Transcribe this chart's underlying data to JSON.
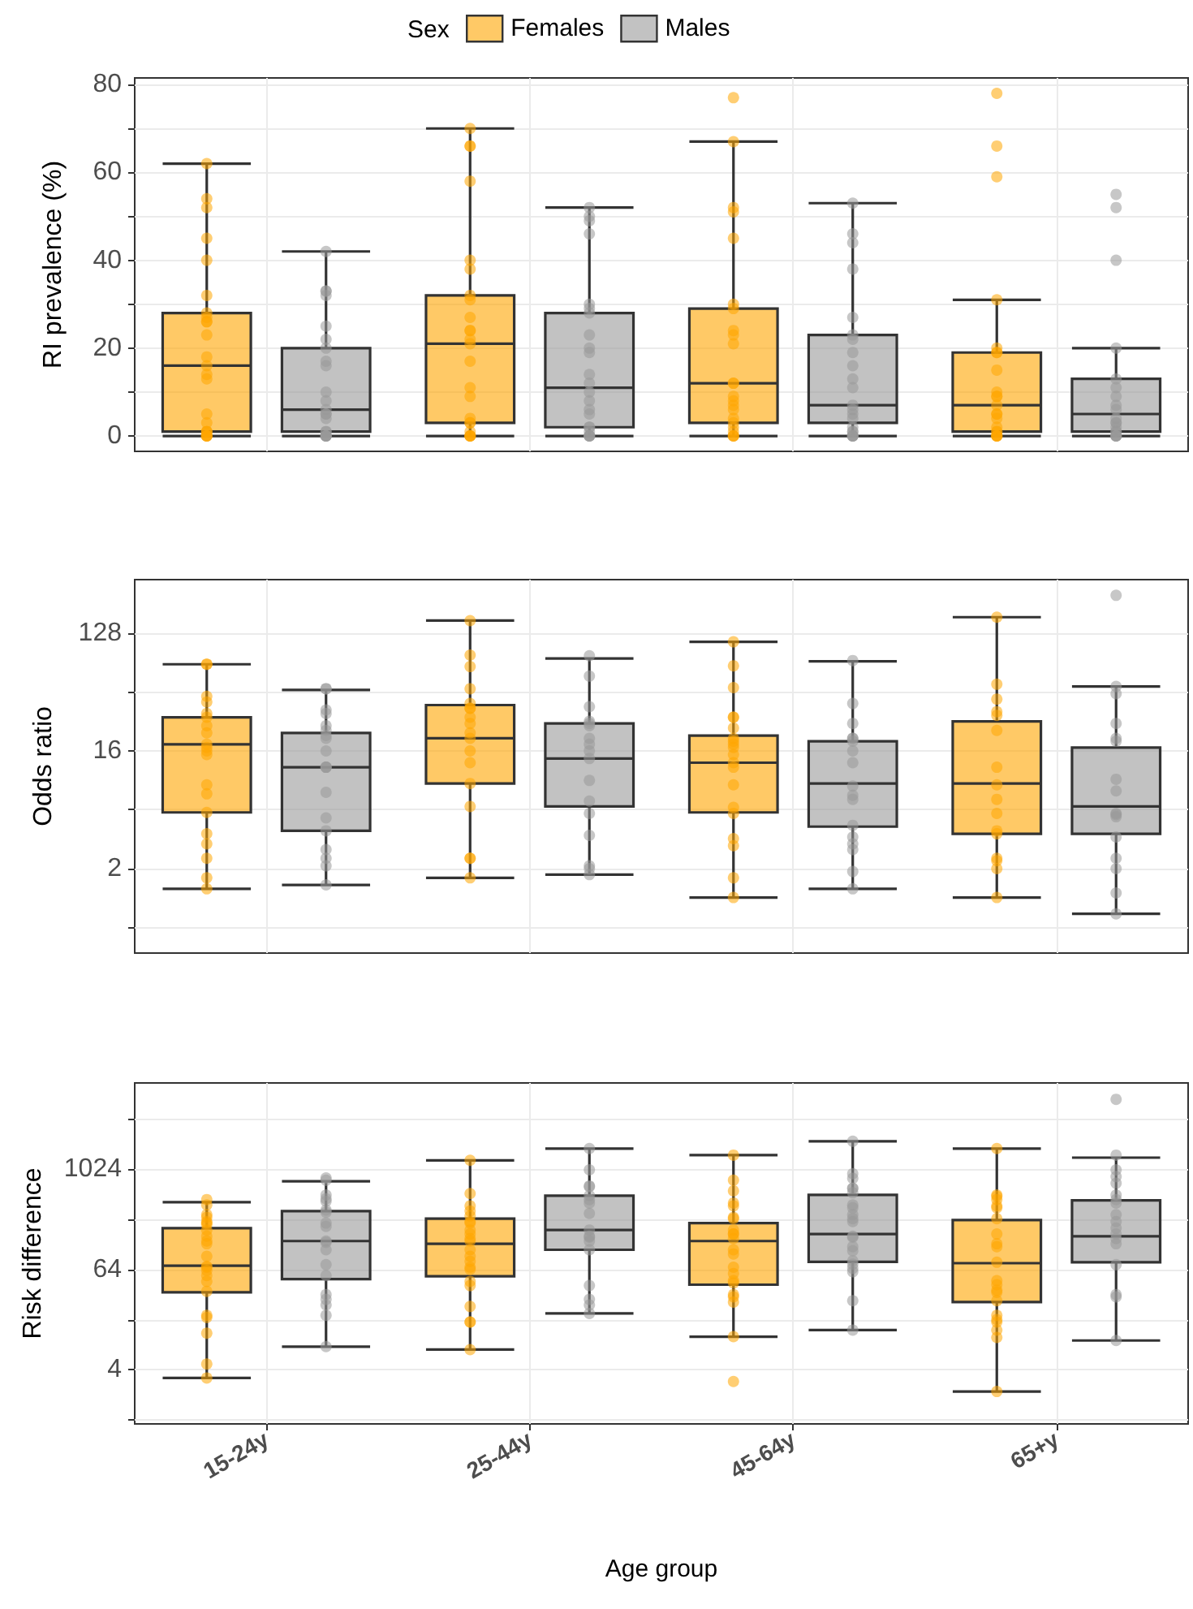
{
  "chart_data": [
    {
      "type": "box",
      "categories": [
        "15-24y",
        "25-44y",
        "45-64y",
        "65+y"
      ],
      "ylabel": "RI prevalence (%)",
      "legend": "top",
      "legend_title": "Sex",
      "ylim": [
        -3.5,
        81.5
      ],
      "yticks": [
        0,
        {
          "value": 10,
          "label": null
        },
        20,
        {
          "value": 30,
          "label": null
        },
        40,
        {
          "value": 50,
          "label": null
        },
        60,
        {
          "value": 70,
          "label": null
        },
        80
      ],
      "grid": true,
      "tick_labels": "y",
      "marker": "circle",
      "series": [
        {
          "name": "Females",
          "color": "#ffa500",
          "boxes": [
            {
              "low": 0,
              "q1": 1,
              "median": 16,
              "q3": 28,
              "high": 62
            },
            {
              "low": 0,
              "q1": 3,
              "median": 21,
              "q3": 32,
              "high": 70
            },
            {
              "low": 0,
              "q1": 3,
              "median": 12,
              "q3": 29,
              "high": 67
            },
            {
              "low": 0,
              "q1": 1,
              "median": 7,
              "q3": 19,
              "high": 31
            }
          ]
        },
        {
          "name": "Males",
          "color": "#999999",
          "boxes": [
            {
              "low": 0,
              "q1": 1,
              "median": 6,
              "q3": 20,
              "high": 42
            },
            {
              "low": 0,
              "q1": 2,
              "median": 11,
              "q3": 28,
              "high": 52
            },
            {
              "low": 0,
              "q1": 3,
              "median": 7,
              "q3": 23,
              "high": 53
            },
            {
              "low": 0,
              "q1": 1,
              "median": 5,
              "q3": 13,
              "high": 20
            }
          ]
        },
        {
          "type": "scatter",
          "color": "#ffa500",
          "x": [
            "15-24y",
            "15-24y",
            "15-24y",
            "15-24y",
            "15-24y",
            "15-24y",
            "15-24y",
            "15-24y",
            "15-24y",
            "15-24y",
            "15-24y",
            "15-24y",
            "15-24y",
            "15-24y",
            "15-24y",
            "15-24y",
            "15-24y",
            "15-24y",
            "15-24y",
            "15-24y",
            "15-24y",
            "15-24y",
            "15-24y",
            "15-24y",
            "25-44y",
            "25-44y",
            "25-44y",
            "25-44y",
            "25-44y",
            "25-44y",
            "25-44y",
            "25-44y",
            "25-44y",
            "25-44y",
            "25-44y",
            "25-44y",
            "25-44y",
            "25-44y",
            "25-44y",
            "25-44y",
            "25-44y",
            "25-44y",
            "25-44y",
            "25-44y",
            "25-44y",
            "25-44y",
            "25-44y",
            "25-44y",
            "45-64y",
            "45-64y",
            "45-64y",
            "45-64y",
            "45-64y",
            "45-64y",
            "45-64y",
            "45-64y",
            "45-64y",
            "45-64y",
            "45-64y",
            "45-64y",
            "45-64y",
            "45-64y",
            "45-64y",
            "45-64y",
            "45-64y",
            "45-64y",
            "45-64y",
            "45-64y",
            "45-64y",
            "45-64y",
            "45-64y",
            "65+y",
            "65+y",
            "65+y",
            "65+y",
            "65+y",
            "65+y",
            "65+y",
            "65+y",
            "65+y",
            "65+y",
            "65+y",
            "65+y",
            "65+y",
            "65+y",
            "65+y",
            "65+y",
            "65+y",
            "65+y",
            "65+y",
            "65+y",
            "65+y",
            "65+y"
          ],
          "values": [
            62,
            54,
            52,
            45,
            40,
            32,
            28,
            27,
            26,
            26,
            23,
            18,
            16,
            14,
            13,
            5,
            3,
            1,
            1,
            1,
            0,
            0,
            0,
            0,
            70,
            66,
            66,
            58,
            40,
            38,
            32,
            31,
            27,
            24,
            24,
            22,
            21,
            17,
            11,
            9,
            4,
            3,
            3,
            1,
            0,
            0,
            0,
            0,
            77,
            67,
            52,
            51,
            45,
            30,
            29,
            24,
            23,
            21,
            12,
            12,
            9,
            8,
            7,
            6,
            4,
            3,
            2,
            1,
            0,
            0,
            0,
            78,
            66,
            59,
            31,
            20,
            19,
            19,
            15,
            10,
            9,
            9,
            7,
            5,
            5,
            4,
            2,
            1,
            1,
            0,
            0,
            0,
            0
          ]
        },
        {
          "type": "scatter",
          "color": "#999999",
          "x": [
            "15-24y",
            "15-24y",
            "15-24y",
            "15-24y",
            "15-24y",
            "15-24y",
            "15-24y",
            "15-24y",
            "15-24y",
            "15-24y",
            "15-24y",
            "15-24y",
            "15-24y",
            "15-24y",
            "15-24y",
            "15-24y",
            "15-24y",
            "15-24y",
            "15-24y",
            "15-24y",
            "15-24y",
            "15-24y",
            "25-44y",
            "25-44y",
            "25-44y",
            "25-44y",
            "25-44y",
            "25-44y",
            "25-44y",
            "25-44y",
            "25-44y",
            "25-44y",
            "25-44y",
            "25-44y",
            "25-44y",
            "25-44y",
            "25-44y",
            "25-44y",
            "25-44y",
            "25-44y",
            "25-44y",
            "25-44y",
            "25-44y",
            "25-44y",
            "25-44y",
            "45-64y",
            "45-64y",
            "45-64y",
            "45-64y",
            "45-64y",
            "45-64y",
            "45-64y",
            "45-64y",
            "45-64y",
            "45-64y",
            "45-64y",
            "45-64y",
            "45-64y",
            "45-64y",
            "45-64y",
            "45-64y",
            "45-64y",
            "45-64y",
            "45-64y",
            "45-64y",
            "45-64y",
            "45-64y",
            "65+y",
            "65+y",
            "65+y",
            "65+y",
            "65+y",
            "65+y",
            "65+y",
            "65+y",
            "65+y",
            "65+y",
            "65+y",
            "65+y",
            "65+y",
            "65+y",
            "65+y",
            "65+y",
            "65+y",
            "65+y",
            "65+y"
          ],
          "values": [
            42,
            33,
            33,
            32,
            25,
            22,
            20,
            17,
            16,
            10,
            8,
            6,
            5,
            5,
            4,
            1,
            1,
            0,
            0,
            0,
            0,
            0,
            52,
            50,
            49,
            46,
            30,
            29,
            28,
            23,
            20,
            19,
            14,
            12,
            10,
            8,
            6,
            5,
            2,
            2,
            1,
            0,
            0,
            0,
            0,
            53,
            46,
            44,
            38,
            27,
            23,
            22,
            19,
            16,
            13,
            11,
            7,
            6,
            5,
            4,
            2,
            1,
            1,
            0,
            0,
            0,
            0,
            55,
            52,
            40,
            20,
            13,
            11,
            9,
            7,
            6,
            4,
            3,
            3,
            2,
            1,
            1,
            0,
            0,
            0,
            0
          ]
        }
      ]
    },
    {
      "type": "box",
      "categories": [
        "15-24y",
        "25-44y",
        "45-64y",
        "65+y"
      ],
      "ylabel": "Odds ratio",
      "log": "y",
      "ylim": [
        0.45,
        330
      ],
      "yticks": [
        {
          "value": 0.707,
          "label": null
        },
        2,
        {
          "value": 5.66,
          "label": null
        },
        16,
        {
          "value": 45.3,
          "label": null
        },
        128
      ],
      "grid": true,
      "tick_labels": "y",
      "marker": "circle",
      "series": [
        {
          "color": "#ffa500",
          "boxes": [
            {
              "low": 1.4,
              "q1": 5.4,
              "median": 18,
              "q3": 29,
              "high": 74
            },
            {
              "low": 1.7,
              "q1": 9,
              "median": 20,
              "q3": 36,
              "high": 160
            },
            {
              "low": 1.2,
              "q1": 5.4,
              "median": 13,
              "q3": 21,
              "high": 110
            },
            {
              "low": 1.2,
              "q1": 3.7,
              "median": 9,
              "q3": 27,
              "high": 170
            }
          ]
        },
        {
          "color": "#999999",
          "boxes": [
            {
              "low": 1.5,
              "q1": 3.9,
              "median": 12,
              "q3": 22,
              "high": 47
            },
            {
              "low": 1.8,
              "q1": 6,
              "median": 14,
              "q3": 26,
              "high": 82
            },
            {
              "low": 1.4,
              "q1": 4.2,
              "median": 9,
              "q3": 19,
              "high": 78
            },
            {
              "low": 0.9,
              "q1": 3.7,
              "median": 6,
              "q3": 17,
              "high": 50
            }
          ]
        },
        {
          "type": "scatter",
          "color": "#ffa500",
          "x": [
            "15-24y",
            "15-24y",
            "15-24y",
            "15-24y",
            "15-24y",
            "15-24y",
            "15-24y",
            "15-24y",
            "15-24y",
            "15-24y",
            "15-24y",
            "15-24y",
            "15-24y",
            "15-24y",
            "15-24y",
            "15-24y",
            "15-24y",
            "15-24y",
            "15-24y",
            "15-24y",
            "25-44y",
            "25-44y",
            "25-44y",
            "25-44y",
            "25-44y",
            "25-44y",
            "25-44y",
            "25-44y",
            "25-44y",
            "25-44y",
            "25-44y",
            "25-44y",
            "25-44y",
            "25-44y",
            "25-44y",
            "25-44y",
            "25-44y",
            "25-44y",
            "45-64y",
            "45-64y",
            "45-64y",
            "45-64y",
            "45-64y",
            "45-64y",
            "45-64y",
            "45-64y",
            "45-64y",
            "45-64y",
            "45-64y",
            "45-64y",
            "45-64y",
            "45-64y",
            "45-64y",
            "45-64y",
            "45-64y",
            "45-64y",
            "45-64y",
            "45-64y",
            "65+y",
            "65+y",
            "65+y",
            "65+y",
            "65+y",
            "65+y",
            "65+y",
            "65+y",
            "65+y",
            "65+y",
            "65+y",
            "65+y",
            "65+y",
            "65+y",
            "65+y",
            "65+y"
          ],
          "values": [
            74,
            74,
            42,
            38,
            31,
            29,
            25,
            22,
            18,
            17,
            16,
            15,
            8.8,
            7.5,
            5.4,
            3.7,
            3.1,
            2.4,
            1.7,
            1.4,
            160,
            87,
            71,
            48,
            37,
            34,
            34,
            29,
            26,
            22,
            20,
            16,
            13,
            9,
            6,
            2.4,
            2.4,
            1.7,
            110,
            72,
            49,
            29,
            29,
            24,
            20,
            19,
            18,
            17,
            15,
            13,
            12,
            8.8,
            5.9,
            5.3,
            3.4,
            3,
            1.7,
            1.2,
            170,
            52,
            40,
            32,
            30,
            23,
            12,
            8.8,
            6.8,
            5.3,
            3.9,
            3.7,
            2.4,
            2.3,
            2,
            1.2
          ]
        },
        {
          "type": "scatter",
          "color": "#999999",
          "x": [
            "15-24y",
            "15-24y",
            "15-24y",
            "15-24y",
            "15-24y",
            "15-24y",
            "15-24y",
            "15-24y",
            "15-24y",
            "15-24y",
            "15-24y",
            "15-24y",
            "15-24y",
            "15-24y",
            "15-24y",
            "15-24y",
            "15-24y",
            "15-24y",
            "15-24y",
            "25-44y",
            "25-44y",
            "25-44y",
            "25-44y",
            "25-44y",
            "25-44y",
            "25-44y",
            "25-44y",
            "25-44y",
            "25-44y",
            "25-44y",
            "25-44y",
            "25-44y",
            "25-44y",
            "25-44y",
            "25-44y",
            "25-44y",
            "45-64y",
            "45-64y",
            "45-64y",
            "45-64y",
            "45-64y",
            "45-64y",
            "45-64y",
            "45-64y",
            "45-64y",
            "45-64y",
            "45-64y",
            "45-64y",
            "45-64y",
            "45-64y",
            "45-64y",
            "45-64y",
            "45-64y",
            "65+y",
            "65+y",
            "65+y",
            "65+y",
            "65+y",
            "65+y",
            "65+y",
            "65+y",
            "65+y",
            "65+y",
            "65+y",
            "65+y",
            "65+y",
            "65+y",
            "65+y",
            "65+y"
          ],
          "values": [
            48,
            48,
            33,
            31,
            25,
            23,
            21,
            20,
            16,
            12,
            12,
            12,
            7.7,
            4.9,
            3.9,
            2.8,
            2.4,
            2.1,
            1.5,
            86,
            60,
            35,
            27,
            26,
            25,
            20,
            18,
            16,
            14,
            9.5,
            6.6,
            5.3,
            3.6,
            2.1,
            2,
            1.8,
            79,
            37,
            26,
            20,
            20,
            19,
            16,
            13,
            8.6,
            7.3,
            6.8,
            4.3,
            3.5,
            3.1,
            2.8,
            1.9,
            1.4,
            250,
            50,
            44,
            26,
            20,
            19,
            9.7,
            7.9,
            5.3,
            5.2,
            5,
            3.5,
            2.4,
            2,
            1.3,
            0.9
          ]
        }
      ]
    },
    {
      "type": "box",
      "categories": [
        "15-24y",
        "25-44y",
        "45-64y",
        "65+y"
      ],
      "xlabel": "Age group",
      "ylabel": "Risk difference",
      "log": "y",
      "ylim": [
        0.9,
        11000
      ],
      "yticks": [
        {
          "value": 1,
          "label": null
        },
        4,
        {
          "value": 16,
          "label": null
        },
        64,
        {
          "value": 256,
          "label": null
        },
        1024,
        {
          "value": 4096,
          "label": null
        }
      ],
      "grid": true,
      "marker": "circle",
      "series": [
        {
          "color": "#ffa500",
          "boxes": [
            {
              "low": 3.2,
              "q1": 34,
              "median": 71,
              "q3": 200,
              "high": 410
            },
            {
              "low": 7,
              "q1": 53,
              "median": 130,
              "q3": 260,
              "high": 1300
            },
            {
              "low": 10,
              "q1": 42,
              "median": 140,
              "q3": 230,
              "high": 1500
            },
            {
              "low": 2.2,
              "q1": 26,
              "median": 76,
              "q3": 250,
              "high": 1800
            }
          ]
        },
        {
          "color": "#999999",
          "boxes": [
            {
              "low": 7.6,
              "q1": 49,
              "median": 140,
              "q3": 320,
              "high": 730
            },
            {
              "low": 19,
              "q1": 110,
              "median": 190,
              "q3": 490,
              "high": 1800
            },
            {
              "low": 12,
              "q1": 79,
              "median": 170,
              "q3": 500,
              "high": 2200
            },
            {
              "low": 9,
              "q1": 78,
              "median": 160,
              "q3": 430,
              "high": 1400
            }
          ]
        },
        {
          "type": "scatter",
          "color": "#ffa500",
          "x": [
            "15-24y",
            "15-24y",
            "15-24y",
            "15-24y",
            "15-24y",
            "15-24y",
            "15-24y",
            "15-24y",
            "15-24y",
            "15-24y",
            "15-24y",
            "15-24y",
            "15-24y",
            "15-24y",
            "15-24y",
            "15-24y",
            "15-24y",
            "15-24y",
            "15-24y",
            "15-24y",
            "15-24y",
            "15-24y",
            "15-24y",
            "25-44y",
            "25-44y",
            "25-44y",
            "25-44y",
            "25-44y",
            "25-44y",
            "25-44y",
            "25-44y",
            "25-44y",
            "25-44y",
            "25-44y",
            "25-44y",
            "25-44y",
            "25-44y",
            "25-44y",
            "25-44y",
            "25-44y",
            "25-44y",
            "25-44y",
            "25-44y",
            "25-44y",
            "25-44y",
            "45-64y",
            "45-64y",
            "45-64y",
            "45-64y",
            "45-64y",
            "45-64y",
            "45-64y",
            "45-64y",
            "45-64y",
            "45-64y",
            "45-64y",
            "45-64y",
            "45-64y",
            "45-64y",
            "45-64y",
            "45-64y",
            "45-64y",
            "45-64y",
            "45-64y",
            "45-64y",
            "45-64y",
            "45-64y",
            "65+y",
            "65+y",
            "65+y",
            "65+y",
            "65+y",
            "65+y",
            "65+y",
            "65+y",
            "65+y",
            "65+y",
            "65+y",
            "65+y",
            "65+y",
            "65+y",
            "65+y",
            "65+y",
            "65+y",
            "65+y",
            "65+y",
            "65+y",
            "65+y",
            "65+y"
          ],
          "values": [
            440,
            380,
            290,
            270,
            240,
            230,
            220,
            190,
            160,
            140,
            130,
            92,
            70,
            68,
            62,
            54,
            46,
            35,
            18,
            17,
            11,
            4.7,
            3.2,
            1300,
            520,
            370,
            320,
            280,
            240,
            230,
            190,
            170,
            150,
            140,
            110,
            92,
            80,
            68,
            64,
            46,
            41,
            23,
            15,
            15,
            7,
            1500,
            750,
            560,
            400,
            370,
            270,
            260,
            190,
            170,
            170,
            150,
            110,
            98,
            68,
            57,
            47,
            44,
            32,
            30,
            26,
            10,
            2.9,
            1800,
            500,
            480,
            440,
            370,
            350,
            260,
            170,
            130,
            120,
            78,
            47,
            42,
            36,
            34,
            27,
            18,
            16,
            15,
            12,
            9.8,
            2.2
          ]
        },
        {
          "type": "scatter",
          "color": "#999999",
          "x": [
            "15-24y",
            "15-24y",
            "15-24y",
            "15-24y",
            "15-24y",
            "15-24y",
            "15-24y",
            "15-24y",
            "15-24y",
            "15-24y",
            "15-24y",
            "15-24y",
            "15-24y",
            "15-24y",
            "15-24y",
            "15-24y",
            "15-24y",
            "15-24y",
            "15-24y",
            "25-44y",
            "25-44y",
            "25-44y",
            "25-44y",
            "25-44y",
            "25-44y",
            "25-44y",
            "25-44y",
            "25-44y",
            "25-44y",
            "25-44y",
            "25-44y",
            "25-44y",
            "25-44y",
            "25-44y",
            "25-44y",
            "25-44y",
            "45-64y",
            "45-64y",
            "45-64y",
            "45-64y",
            "45-64y",
            "45-64y",
            "45-64y",
            "45-64y",
            "45-64y",
            "45-64y",
            "45-64y",
            "45-64y",
            "45-64y",
            "45-64y",
            "45-64y",
            "45-64y",
            "45-64y",
            "45-64y",
            "45-64y",
            "45-64y",
            "45-64y",
            "65+y",
            "65+y",
            "65+y",
            "65+y",
            "65+y",
            "65+y",
            "65+y",
            "65+y",
            "65+y",
            "65+y",
            "65+y",
            "65+y",
            "65+y",
            "65+y",
            "65+y",
            "65+y",
            "65+y",
            "65+y"
          ],
          "values": [
            800,
            750,
            500,
            450,
            420,
            330,
            310,
            230,
            210,
            140,
            135,
            110,
            73,
            54,
            32,
            28,
            24,
            18,
            7.6,
            1800,
            1000,
            640,
            630,
            490,
            440,
            400,
            300,
            190,
            160,
            156,
            140,
            110,
            41,
            28,
            24,
            19,
            2200,
            900,
            790,
            600,
            600,
            530,
            380,
            350,
            290,
            260,
            240,
            160,
            156,
            120,
            107,
            81,
            74,
            66,
            60,
            27,
            12,
            7000,
            1500,
            1000,
            830,
            690,
            500,
            440,
            400,
            290,
            240,
            200,
            170,
            150,
            130,
            73,
            32,
            30,
            9
          ]
        }
      ]
    }
  ]
}
